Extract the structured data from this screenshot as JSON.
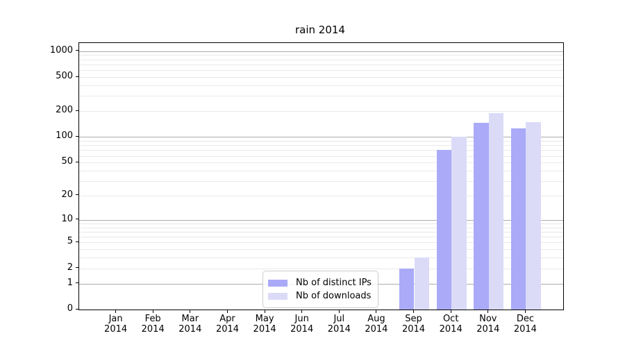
{
  "title": "rain 2014",
  "chart_data": {
    "type": "bar",
    "title": "rain 2014",
    "categories": [
      "Jan",
      "Feb",
      "Mar",
      "Apr",
      "May",
      "Jun",
      "Jul",
      "Aug",
      "Sep",
      "Oct",
      "Nov",
      "Dec"
    ],
    "x_axis": {
      "year_label": "2014",
      "tick_label_format": "month newline year"
    },
    "series": [
      {
        "name": "Nb of distinct IPs",
        "color": "#aaaaf8",
        "values": [
          0,
          0,
          0,
          0,
          0,
          0,
          0,
          0,
          2,
          70,
          145,
          125
        ]
      },
      {
        "name": "Nb of downloads",
        "color": "#dbdbf8",
        "values": [
          0,
          0,
          0,
          0,
          0,
          0,
          0,
          0,
          3,
          100,
          190,
          150
        ]
      }
    ],
    "y_axis": {
      "scale": "log10(1+v)",
      "ticks": [
        0,
        1,
        2,
        5,
        10,
        20,
        50,
        100,
        200,
        500,
        1000
      ],
      "max": 1242,
      "major_gridlines": [
        1,
        10,
        100,
        1000
      ]
    },
    "grid": {
      "major_color": "#ababab",
      "minor_color": "#e9e9e9"
    },
    "legend": {
      "position": "lower center inside",
      "frame_color": "#cccccc"
    },
    "bar_layout": {
      "group_width_fraction": 0.8,
      "bars_per_group": 2
    },
    "background_color": "#ffffff",
    "spine_color": "#000000"
  }
}
